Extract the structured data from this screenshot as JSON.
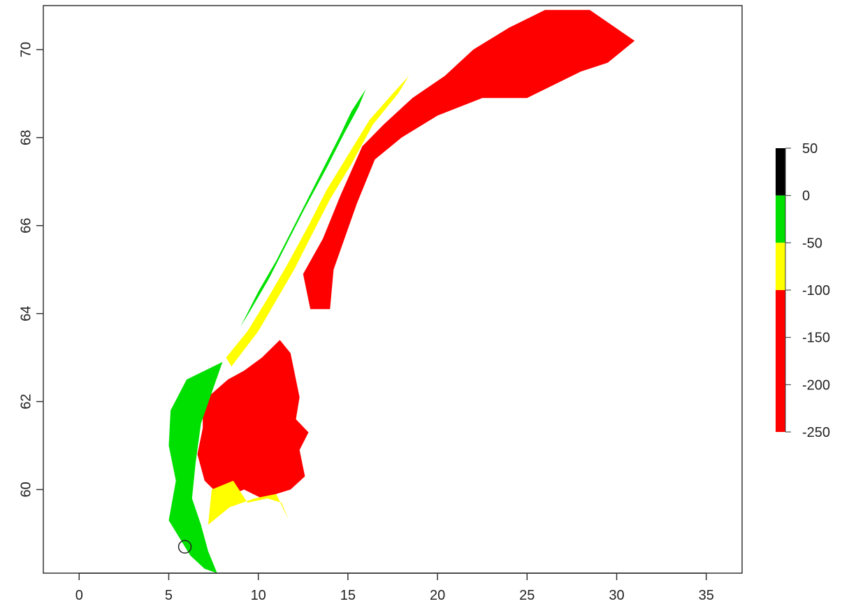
{
  "chart_data": {
    "type": "raster-map",
    "title": "",
    "xlabel": "",
    "ylabel": "",
    "xlim": [
      -2,
      37
    ],
    "ylim": [
      58.1,
      71.0
    ],
    "x_ticks": [
      0,
      5,
      10,
      15,
      20,
      25,
      30,
      35
    ],
    "y_ticks": [
      60,
      62,
      64,
      66,
      68,
      70
    ],
    "x_tick_labels": [
      "0",
      "5",
      "10",
      "15",
      "20",
      "25",
      "30",
      "35"
    ],
    "y_tick_labels": [
      "60",
      "62",
      "64",
      "66",
      "68",
      "70"
    ],
    "colors": {
      "red": "#ff0000",
      "yellow": "#ffff00",
      "green": "#00e000",
      "black": "#000000"
    },
    "legend": {
      "placement": "right",
      "breaks": [
        50,
        0,
        -50,
        -100,
        -150,
        -200,
        -250
      ],
      "labels": [
        "50",
        "0",
        "-50",
        "-100",
        "-150",
        "-200",
        "-250"
      ],
      "bins": [
        {
          "from": 0,
          "to": 50,
          "color": "#000000"
        },
        {
          "from": -50,
          "to": 0,
          "color": "#00e000"
        },
        {
          "from": -100,
          "to": -50,
          "color": "#ffff00"
        },
        {
          "from": -250,
          "to": -100,
          "color": "#ff0000"
        }
      ]
    },
    "marker": {
      "lon": 5.9,
      "lat": 58.7,
      "shape": "open-circle"
    },
    "regions": [
      {
        "name": "red-interior-south",
        "color": "#ff0000",
        "lonlat": [
          [
            6.9,
            62.0
          ],
          [
            8.3,
            62.5
          ],
          [
            9.2,
            62.7
          ],
          [
            10.2,
            63.0
          ],
          [
            11.2,
            63.4
          ],
          [
            11.8,
            63.1
          ],
          [
            12.3,
            62.1
          ],
          [
            12.1,
            61.6
          ],
          [
            12.8,
            61.3
          ],
          [
            12.3,
            60.9
          ],
          [
            12.6,
            60.3
          ],
          [
            11.8,
            60.0
          ],
          [
            10.2,
            59.8
          ],
          [
            9.2,
            60.0
          ],
          [
            8.0,
            59.8
          ],
          [
            7.0,
            60.2
          ],
          [
            6.6,
            60.8
          ],
          [
            6.9,
            61.4
          ]
        ]
      },
      {
        "name": "red-north",
        "color": "#ff0000",
        "lonlat": [
          [
            12.5,
            64.9
          ],
          [
            13.6,
            65.7
          ],
          [
            14.6,
            66.7
          ],
          [
            15.8,
            67.8
          ],
          [
            17.0,
            68.3
          ],
          [
            18.6,
            68.9
          ],
          [
            20.4,
            69.4
          ],
          [
            22.0,
            70.0
          ],
          [
            24.0,
            70.5
          ],
          [
            26.0,
            70.9
          ],
          [
            28.5,
            70.9
          ],
          [
            31.0,
            70.2
          ],
          [
            29.5,
            69.7
          ],
          [
            28.0,
            69.5
          ],
          [
            25.0,
            68.9
          ],
          [
            22.5,
            68.9
          ],
          [
            20.0,
            68.5
          ],
          [
            18.0,
            68.0
          ],
          [
            16.5,
            67.5
          ],
          [
            15.5,
            66.5
          ],
          [
            14.2,
            65.0
          ],
          [
            14.0,
            64.1
          ],
          [
            12.9,
            64.1
          ]
        ]
      },
      {
        "name": "yellow-south",
        "color": "#ffff00",
        "lonlat": [
          [
            7.2,
            59.2
          ],
          [
            8.4,
            59.6
          ],
          [
            9.8,
            59.8
          ],
          [
            11.0,
            59.9
          ],
          [
            11.7,
            59.3
          ],
          [
            11.3,
            59.7
          ],
          [
            10.5,
            59.8
          ],
          [
            9.4,
            59.7
          ],
          [
            8.6,
            60.2
          ],
          [
            7.4,
            60.0
          ]
        ]
      },
      {
        "name": "yellow-mid",
        "color": "#ffff00",
        "lonlat": [
          [
            8.5,
            62.8
          ],
          [
            10.0,
            63.6
          ],
          [
            11.0,
            64.3
          ],
          [
            12.0,
            65.0
          ],
          [
            13.0,
            65.8
          ],
          [
            14.0,
            66.6
          ],
          [
            15.2,
            67.4
          ],
          [
            16.4,
            68.3
          ],
          [
            17.8,
            69.0
          ],
          [
            18.4,
            69.4
          ],
          [
            17.5,
            69.0
          ],
          [
            16.2,
            68.4
          ],
          [
            15.0,
            67.6
          ],
          [
            13.8,
            66.8
          ],
          [
            12.8,
            66.0
          ],
          [
            11.6,
            65.1
          ],
          [
            10.6,
            64.4
          ],
          [
            9.4,
            63.6
          ],
          [
            8.2,
            63.0
          ]
        ]
      },
      {
        "name": "green-coast-south",
        "color": "#00e000",
        "lonlat": [
          [
            5.0,
            59.3
          ],
          [
            5.4,
            60.2
          ],
          [
            5.0,
            61.0
          ],
          [
            5.1,
            61.8
          ],
          [
            6.0,
            62.5
          ],
          [
            7.0,
            62.7
          ],
          [
            8.0,
            62.9
          ],
          [
            7.4,
            62.2
          ],
          [
            6.8,
            61.5
          ],
          [
            6.5,
            60.6
          ],
          [
            6.3,
            59.8
          ],
          [
            6.8,
            59.2
          ],
          [
            7.2,
            58.6
          ],
          [
            7.7,
            58.1
          ],
          [
            7.0,
            58.2
          ],
          [
            6.2,
            58.5
          ],
          [
            5.6,
            58.9
          ]
        ]
      },
      {
        "name": "green-coast-north",
        "color": "#00e000",
        "lonlat": [
          [
            9.0,
            63.7
          ],
          [
            10.0,
            64.5
          ],
          [
            11.0,
            65.2
          ],
          [
            12.0,
            66.0
          ],
          [
            13.5,
            67.2
          ],
          [
            14.5,
            68.0
          ],
          [
            15.2,
            68.6
          ],
          [
            16.0,
            69.1
          ],
          [
            15.6,
            68.7
          ],
          [
            14.8,
            68.1
          ],
          [
            13.8,
            67.3
          ],
          [
            12.6,
            66.4
          ],
          [
            11.6,
            65.6
          ],
          [
            10.6,
            64.8
          ],
          [
            9.6,
            64.1
          ]
        ]
      }
    ]
  }
}
